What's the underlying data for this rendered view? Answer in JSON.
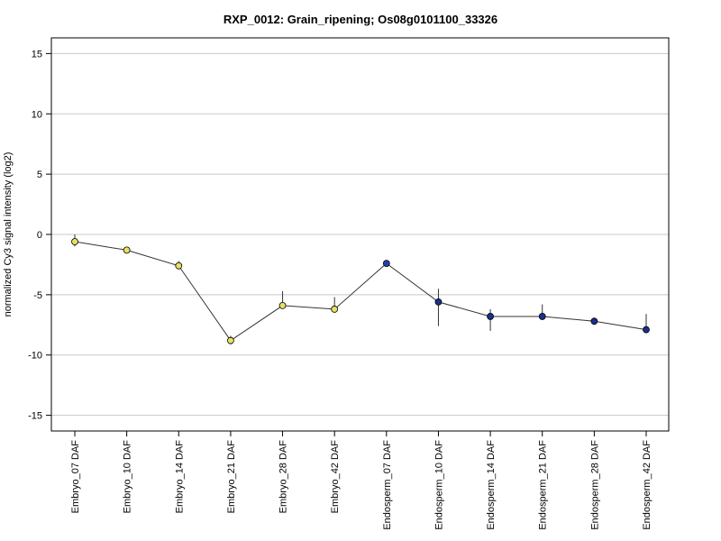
{
  "chart_data": {
    "type": "line",
    "title": "RXP_0012: Grain_ripening; Os08g0101100_33326",
    "xlabel": "",
    "ylabel": "normalized Cy3 signal intensity (log2)",
    "ylim": [
      -16.3,
      16.3
    ],
    "yticks": [
      15,
      10,
      5,
      0,
      -5,
      -10,
      -15
    ],
    "grid": true,
    "categories": [
      "Embryo_07 DAF",
      "Embryo_10 DAF",
      "Embryo_14 DAF",
      "Embryo_21 DAF",
      "Embryo_28 DAF",
      "Embryo_42 DAF",
      "Endosperm_07 DAF",
      "Endosperm_10 DAF",
      "Endosperm_14 DAF",
      "Endosperm_21 DAF",
      "Endosperm_28 DAF",
      "Endosperm_42 DAF"
    ],
    "values": [
      -0.6,
      -1.3,
      -2.6,
      -8.8,
      -5.9,
      -6.2,
      -2.4,
      -5.6,
      -6.8,
      -6.8,
      -7.2,
      -7.9
    ],
    "error_low": [
      -1.0,
      -1.5,
      -2.9,
      -9.1,
      -6.1,
      -6.4,
      -2.5,
      -7.6,
      -8.0,
      -7.0,
      -7.4,
      -8.0
    ],
    "error_high": [
      0.0,
      -1.1,
      -2.2,
      -8.4,
      -4.7,
      -5.2,
      -2.3,
      -4.5,
      -6.2,
      -5.8,
      -6.9,
      -6.6
    ],
    "point_colors": [
      "#e8e060",
      "#e8e060",
      "#e8e060",
      "#e8e060",
      "#e8e060",
      "#e8e060",
      "#2244aa",
      "#1a2f8e",
      "#1a2f8e",
      "#1a2f8e",
      "#1a2f8e",
      "#1a2f8e"
    ],
    "line_color": "#333333",
    "grid_color": "#c8c8c8"
  }
}
